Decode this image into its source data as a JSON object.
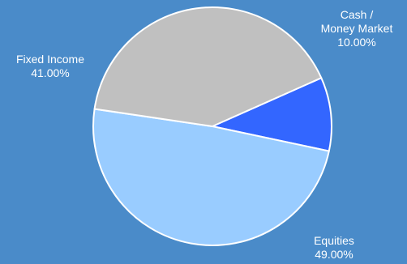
{
  "chart_data": {
    "type": "pie",
    "title": "",
    "start_angle_deg": 66,
    "direction": "clockwise",
    "slices": [
      {
        "label_lines": [
          "Cash /",
          "Money Market"
        ],
        "percent_label": "10.00%",
        "value": 10.0,
        "color": "#3366ff"
      },
      {
        "label_lines": [
          "Equities"
        ],
        "percent_label": "49.00%",
        "value": 49.0,
        "color": "#99ccff"
      },
      {
        "label_lines": [
          "Fixed Income"
        ],
        "percent_label": "41.00%",
        "value": 41.0,
        "color": "#c0c0c0"
      }
    ],
    "slice_border_color": "#ffffff",
    "background_color": "#4a8bc9"
  }
}
